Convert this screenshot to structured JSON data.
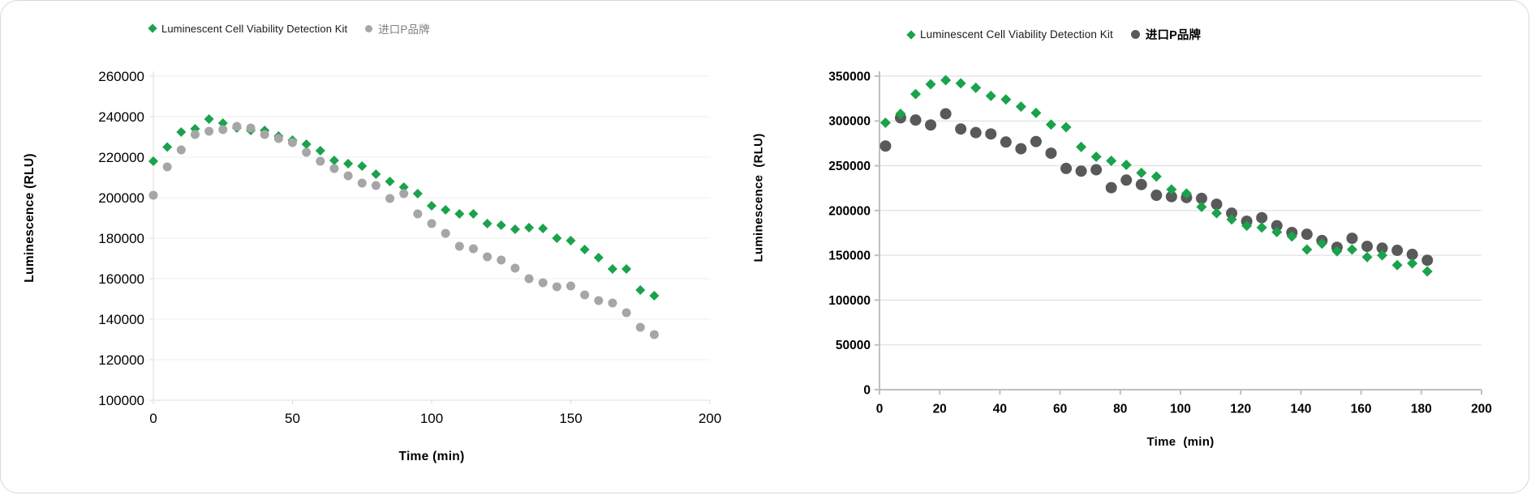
{
  "page": {
    "background": "#ffffff",
    "border_color": "#d9d9d9"
  },
  "chart_data": [
    {
      "id": "left",
      "type": "scatter",
      "title": "",
      "xlabel": "Time (min)",
      "ylabel": "Luminescence (RLU)",
      "legend": {
        "position": "top",
        "items": [
          {
            "label": "Luminescent Cell Viability Detection Kit",
            "marker": "diamond",
            "color": "#1aa24c",
            "label_color": "#1a1a1a"
          },
          {
            "label": "进口P品牌",
            "marker": "circle",
            "color": "#a6a6a6",
            "label_color": "#7f7f7f"
          }
        ]
      },
      "x_axis": {
        "title": "Time (min)",
        "min": 0,
        "max": 200,
        "tick_step": 50,
        "ticks": [
          0,
          50,
          100,
          150,
          200
        ]
      },
      "y_axis": {
        "title": "Luminescence (RLU)",
        "min": 100000,
        "max": 260000,
        "tick_step": 20000,
        "ticks": [
          100000,
          120000,
          140000,
          160000,
          180000,
          200000,
          220000,
          240000,
          260000
        ]
      },
      "grid": "horizontal",
      "bold_tick_labels": false,
      "series": [
        {
          "key": "kit",
          "name": "Luminescent Cell Viability Detection Kit",
          "marker": "diamond",
          "color": "#1aa24c",
          "x": [
            0,
            5,
            10,
            15,
            20,
            25,
            30,
            35,
            40,
            45,
            50,
            55,
            60,
            65,
            70,
            75,
            80,
            85,
            90,
            95,
            100,
            105,
            110,
            115,
            120,
            125,
            130,
            135,
            140,
            145,
            150,
            155,
            160,
            165,
            170,
            175,
            180
          ],
          "y": [
            218000,
            225000,
            232400,
            234000,
            238800,
            236800,
            234400,
            233200,
            233200,
            230400,
            228400,
            226400,
            223200,
            218400,
            216800,
            215600,
            211600,
            208000,
            205200,
            202000,
            196000,
            194000,
            192000,
            192000,
            187200,
            186400,
            184400,
            185200,
            184800,
            180000,
            178800,
            174400,
            170400,
            164800,
            164800,
            154400,
            151600
          ]
        },
        {
          "key": "brand",
          "name": "进口P品牌",
          "marker": "circle",
          "color": "#a6a6a6",
          "x": [
            0,
            5,
            10,
            15,
            20,
            25,
            30,
            35,
            40,
            45,
            50,
            55,
            60,
            65,
            70,
            75,
            80,
            85,
            90,
            95,
            100,
            105,
            110,
            115,
            120,
            125,
            130,
            135,
            140,
            145,
            150,
            155,
            160,
            165,
            170,
            175,
            180
          ],
          "y": [
            201200,
            215200,
            223600,
            231200,
            232800,
            233600,
            235200,
            234400,
            231200,
            229200,
            227200,
            222400,
            218000,
            214400,
            210800,
            207200,
            206000,
            199600,
            202000,
            192000,
            187200,
            182400,
            176000,
            174800,
            170800,
            169200,
            165200,
            160000,
            158000,
            156000,
            156400,
            152000,
            149200,
            148000,
            143200,
            136000,
            132400
          ]
        }
      ]
    },
    {
      "id": "right",
      "type": "scatter",
      "title": "",
      "xlabel": "Time  (min)",
      "ylabel": "Luminescence  (RLU)",
      "legend": {
        "position": "top",
        "items": [
          {
            "label": "Luminescent Cell Viability Detection Kit",
            "marker": "diamond",
            "color": "#1aa24c",
            "label_color": "#1a1a1a"
          },
          {
            "label": "进口P品牌",
            "marker": "circle",
            "color": "#595959",
            "label_color": "#000000"
          }
        ]
      },
      "x_axis": {
        "title": "Time  (min)",
        "min": 0,
        "max": 200,
        "tick_step": 20,
        "ticks": [
          0,
          20,
          40,
          60,
          80,
          100,
          120,
          140,
          160,
          180,
          200
        ]
      },
      "y_axis": {
        "title": "Luminescence  (RLU)",
        "min": 0,
        "max": 350000,
        "tick_step": 50000,
        "ticks": [
          0,
          50000,
          100000,
          150000,
          200000,
          250000,
          300000,
          350000
        ]
      },
      "grid": "horizontal",
      "bold_tick_labels": true,
      "series": [
        {
          "key": "kit",
          "name": "Luminescent Cell Viability Detection Kit",
          "marker": "diamond",
          "color": "#1aa24c",
          "x": [
            2,
            7,
            12,
            17,
            22,
            27,
            32,
            37,
            42,
            47,
            52,
            57,
            62,
            67,
            72,
            77,
            82,
            87,
            92,
            97,
            102,
            107,
            112,
            117,
            122,
            127,
            132,
            137,
            142,
            147,
            152,
            157,
            162,
            167,
            172,
            177,
            182
          ],
          "y": [
            298000,
            308000,
            330000,
            341000,
            345500,
            342000,
            337000,
            328000,
            324000,
            316000,
            309000,
            296000,
            293000,
            271000,
            260000,
            255500,
            251000,
            242000,
            238000,
            223500,
            219000,
            204000,
            197000,
            190000,
            183000,
            181000,
            176000,
            171000,
            156500,
            163000,
            154500,
            156500,
            148000,
            150000,
            139000,
            141000,
            132000
          ]
        },
        {
          "key": "brand",
          "name": "进口P品牌",
          "marker": "circle",
          "color": "#595959",
          "x": [
            2,
            7,
            12,
            17,
            22,
            27,
            32,
            37,
            42,
            47,
            52,
            57,
            62,
            67,
            72,
            77,
            82,
            87,
            92,
            97,
            102,
            107,
            112,
            117,
            122,
            127,
            132,
            137,
            142,
            147,
            152,
            157,
            162,
            167,
            172,
            177,
            182
          ],
          "y": [
            272000,
            303500,
            301000,
            295500,
            308000,
            291000,
            287000,
            285500,
            276500,
            269000,
            277000,
            264000,
            247000,
            244000,
            245500,
            225500,
            234000,
            229000,
            217000,
            215500,
            214500,
            213500,
            207000,
            197000,
            188000,
            192000,
            183000,
            175500,
            173500,
            166500,
            159000,
            169000,
            160000,
            158000,
            155500,
            151000,
            144500
          ]
        }
      ]
    }
  ]
}
